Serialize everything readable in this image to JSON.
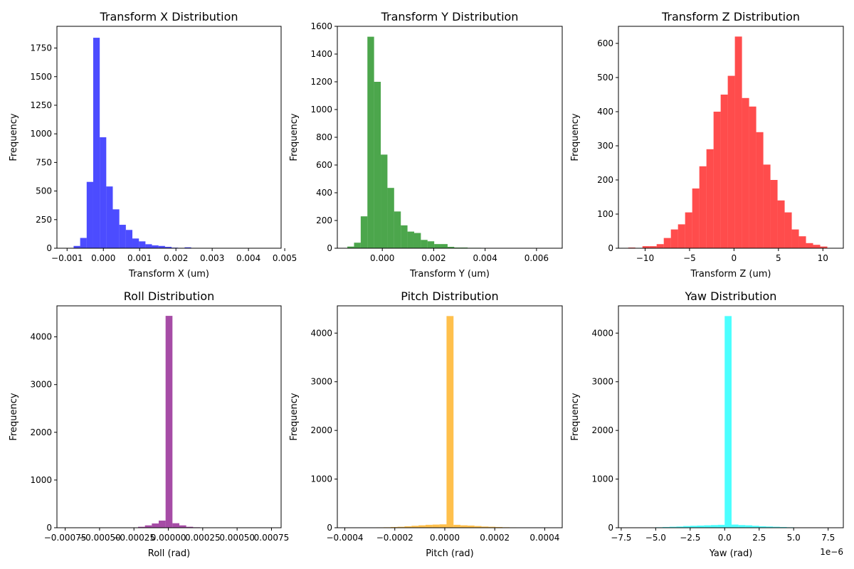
{
  "chart_data": [
    {
      "type": "bar",
      "title": "Transform X Distribution",
      "xlabel": "Transform X (um)",
      "ylabel": "Frequency",
      "color": "#0000ff",
      "xlim": [
        -0.00128,
        0.0049
      ],
      "ylim": [
        0,
        1940
      ],
      "xticks": [
        -0.001,
        0.0,
        0.001,
        0.002,
        0.003,
        0.004,
        0.005
      ],
      "xtick_labels": [
        "−0.001",
        "0.000",
        "0.001",
        "0.002",
        "0.003",
        "0.004",
        "0.005"
      ],
      "yticks": [
        0,
        250,
        500,
        750,
        1000,
        1250,
        1500,
        1750
      ],
      "ytick_labels": [
        "0",
        "250",
        "500",
        "750",
        "1000",
        "1250",
        "1500",
        "1750"
      ],
      "bin_edges": [
        -0.001,
        -0.00082,
        -0.00064,
        -0.00046,
        -0.00028,
        -0.0001,
        8e-05,
        0.00026,
        0.00044,
        0.00062,
        0.0008,
        0.00098,
        0.00116,
        0.00134,
        0.00152,
        0.0017,
        0.00188,
        0.00206,
        0.00224,
        0.00242,
        0.0026,
        0.00278,
        0.00296,
        0.00314,
        0.00332,
        0.0035,
        0.00368,
        0.00386,
        0.00404,
        0.00422,
        0.0044,
        0.00458,
        0.00476
      ],
      "values": [
        2,
        20,
        90,
        580,
        1840,
        970,
        540,
        340,
        205,
        160,
        85,
        60,
        35,
        25,
        20,
        12,
        5,
        3,
        8,
        2,
        1,
        1,
        1,
        1,
        1,
        0,
        0,
        0,
        0,
        0,
        0,
        1
      ]
    },
    {
      "type": "bar",
      "title": "Transform Y Distribution",
      "xlabel": "Transform Y (um)",
      "ylabel": "Frequency",
      "color": "#008000",
      "xlim": [
        -0.00175,
        0.007
      ],
      "ylim": [
        0,
        1600
      ],
      "xticks": [
        0.0,
        0.002,
        0.004,
        0.006
      ],
      "xtick_labels": [
        "0.000",
        "0.002",
        "0.004",
        "0.006"
      ],
      "yticks": [
        0,
        200,
        400,
        600,
        800,
        1000,
        1200,
        1400,
        1600
      ],
      "ytick_labels": [
        "0",
        "200",
        "400",
        "600",
        "800",
        "1000",
        "1200",
        "1400",
        "1600"
      ],
      "bin_edges": [
        -0.00136,
        -0.0011,
        -0.00084,
        -0.00058,
        -0.00032,
        -6e-05,
        0.0002,
        0.00046,
        0.00072,
        0.00098,
        0.00124,
        0.0015,
        0.00176,
        0.00202,
        0.00228,
        0.00254,
        0.0028,
        0.00306,
        0.00332,
        0.00358,
        0.00384,
        0.0041,
        0.00436,
        0.00462,
        0.00488,
        0.00514,
        0.0054,
        0.00566,
        0.00592,
        0.00618,
        0.00644,
        0.0067
      ],
      "values": [
        12,
        40,
        230,
        1525,
        1200,
        675,
        435,
        265,
        165,
        120,
        110,
        60,
        50,
        30,
        30,
        10,
        5,
        5,
        3,
        3,
        2,
        1,
        1,
        0,
        1,
        0,
        0,
        0,
        0,
        0,
        1
      ]
    },
    {
      "type": "bar",
      "title": "Transform Z Distribution",
      "xlabel": "Transform Z (um)",
      "ylabel": "Frequency",
      "color": "#ff0000",
      "xlim": [
        -13.0,
        12.3
      ],
      "ylim": [
        0,
        650
      ],
      "xticks": [
        -10,
        -5,
        0,
        5,
        10
      ],
      "xtick_labels": [
        "−10",
        "−5",
        "0",
        "5",
        "10"
      ],
      "yticks": [
        0,
        100,
        200,
        300,
        400,
        500,
        600
      ],
      "ytick_labels": [
        "0",
        "100",
        "200",
        "300",
        "400",
        "500",
        "600"
      ],
      "bin_edges": [
        -11.9,
        -11.1,
        -10.3,
        -9.5,
        -8.7,
        -7.9,
        -7.1,
        -6.3,
        -5.5,
        -4.7,
        -3.9,
        -3.1,
        -2.3,
        -1.5,
        -0.7,
        0.1,
        0.9,
        1.7,
        2.5,
        3.3,
        4.1,
        4.9,
        5.7,
        6.5,
        7.3,
        8.1,
        8.9,
        9.7,
        10.5
      ],
      "values": [
        2,
        0,
        6,
        6,
        12,
        30,
        55,
        70,
        105,
        175,
        240,
        290,
        400,
        450,
        505,
        620,
        440,
        415,
        340,
        245,
        200,
        140,
        105,
        55,
        35,
        15,
        10,
        5
      ]
    },
    {
      "type": "bar",
      "title": "Roll Distribution",
      "xlabel": "Roll (rad)",
      "ylabel": "Frequency",
      "color": "#800080",
      "xlim": [
        -0.00081,
        0.00082
      ],
      "ylim": [
        0,
        4650
      ],
      "xticks": [
        -0.00075,
        -0.0005,
        -0.00025,
        0.0,
        0.00025,
        0.0005,
        0.00075
      ],
      "xtick_labels": [
        "−0.00075",
        "−0.00050",
        "−0.00025",
        "0.00000",
        "0.00025",
        "0.00050",
        "0.00075"
      ],
      "yticks": [
        0,
        1000,
        2000,
        3000,
        4000
      ],
      "ytick_labels": [
        "0",
        "1000",
        "2000",
        "3000",
        "4000"
      ],
      "bin_edges": [
        -0.00072,
        -0.00067,
        -0.00062,
        -0.00057,
        -0.00052,
        -0.00047,
        -0.00042,
        -0.00037,
        -0.00032,
        -0.00027,
        -0.00022,
        -0.00017,
        -0.00012,
        -7e-05,
        -2e-05,
        3e-05,
        8e-05,
        0.00013,
        0.00018,
        0.00023,
        0.00028,
        0.00033,
        0.00038,
        0.00043,
        0.00048,
        0.00053,
        0.00058,
        0.00063,
        0.00068,
        0.00073
      ],
      "values": [
        1,
        1,
        1,
        5,
        3,
        5,
        2,
        1,
        1,
        2,
        20,
        50,
        90,
        150,
        4440,
        95,
        50,
        20,
        10,
        3,
        2,
        1,
        2,
        2,
        5,
        2,
        1,
        1,
        1
      ]
    },
    {
      "type": "bar",
      "title": "Pitch Distribution",
      "xlabel": "Pitch (rad)",
      "ylabel": "Frequency",
      "color": "#ffa500",
      "xlim": [
        -0.00043,
        0.00047
      ],
      "ylim": [
        0,
        4560
      ],
      "xticks": [
        -0.0004,
        -0.0002,
        0.0,
        0.0002,
        0.0004
      ],
      "xtick_labels": [
        "−0.0004",
        "−0.0002",
        "0.0000",
        "0.0002",
        "0.0004"
      ],
      "yticks": [
        0,
        1000,
        2000,
        3000,
        4000
      ],
      "ytick_labels": [
        "0",
        "1000",
        "2000",
        "3000",
        "4000"
      ],
      "bin_edges": [
        -0.000385,
        -0.000357,
        -0.000329,
        -0.000301,
        -0.000273,
        -0.000245,
        -0.000217,
        -0.000189,
        -0.000161,
        -0.000133,
        -0.000105,
        -7.7e-05,
        -4.9e-05,
        -2.1e-05,
        7e-06,
        3.5e-05,
        6.3e-05,
        9.1e-05,
        0.000119,
        0.000147,
        0.000175,
        0.000203,
        0.000231,
        0.000259,
        0.000287,
        0.000315,
        0.000343,
        0.000371,
        0.000399,
        0.000427,
        0.000455
      ],
      "values": [
        1,
        1,
        2,
        5,
        8,
        10,
        15,
        20,
        30,
        40,
        50,
        60,
        65,
        70,
        4350,
        60,
        50,
        45,
        35,
        25,
        20,
        15,
        10,
        8,
        5,
        3,
        2,
        1,
        1,
        1
      ]
    },
    {
      "type": "bar",
      "title": "Yaw Distribution",
      "xlabel": "Yaw (rad)",
      "ylabel": "Frequency",
      "color": "#00ffff",
      "xlim": [
        -7.7e-06,
        8.6e-06
      ],
      "ylim": [
        0,
        4560
      ],
      "offset_label": "1e−6",
      "xticks": [
        -7.5e-06,
        -5e-06,
        -2.5e-06,
        0.0,
        2.5e-06,
        5e-06,
        7.5e-06
      ],
      "xtick_labels": [
        "−7.5",
        "−5.0",
        "−2.5",
        "0.0",
        "2.5",
        "5.0",
        "7.5"
      ],
      "yticks": [
        0,
        1000,
        2000,
        3000,
        4000
      ],
      "ytick_labels": [
        "0",
        "1000",
        "2000",
        "3000",
        "4000"
      ],
      "bin_edges": [
        -7e-06,
        -6.5e-06,
        -6e-06,
        -5.5e-06,
        -5e-06,
        -4.5e-06,
        -4e-06,
        -3.5e-06,
        -3e-06,
        -2.5e-06,
        -2e-06,
        -1.5e-06,
        -1e-06,
        -5e-07,
        0.0,
        5e-07,
        1e-06,
        1.5e-06,
        2e-06,
        2.5e-06,
        3e-06,
        3.5e-06,
        4e-06,
        4.5e-06,
        5e-06,
        5.5e-06,
        6e-06,
        6.5e-06,
        7e-06,
        7.5e-06,
        8e-06
      ],
      "values": [
        1,
        1,
        2,
        5,
        10,
        15,
        20,
        25,
        35,
        40,
        45,
        50,
        55,
        60,
        4350,
        65,
        55,
        50,
        40,
        30,
        25,
        20,
        15,
        10,
        5,
        5,
        2,
        1,
        1,
        1
      ]
    }
  ]
}
